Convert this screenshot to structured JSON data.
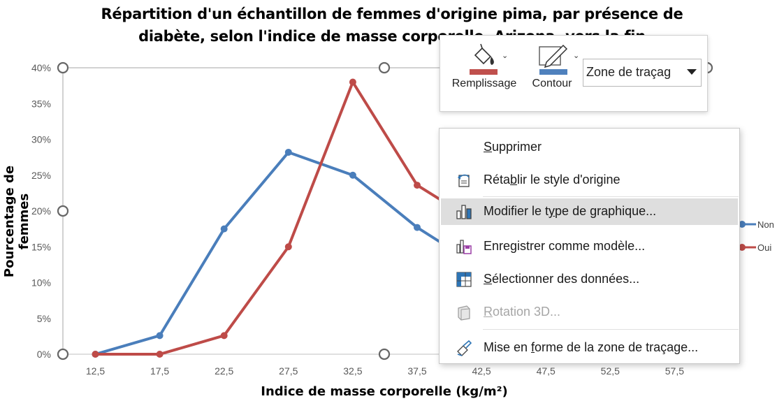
{
  "chart_data": {
    "type": "line",
    "title_line1": "Répartition d'un échantillon de femmes d'origine pima, par présence de",
    "title_line2": "diabète, selon l'indice de masse corporelle. Arizona, vers la fin",
    "xlabel": "Indice de masse corporelle (kg/m²)",
    "ylabel": "Pourcentage de femmes",
    "categories": [
      "12,5",
      "17,5",
      "22,5",
      "27,5",
      "32,5",
      "37,5",
      "42,5",
      "47,5",
      "52,5",
      "57,5"
    ],
    "y_ticks": [
      "0%",
      "5%",
      "10%",
      "15%",
      "20%",
      "25%",
      "30%",
      "35%",
      "40%"
    ],
    "ylim": [
      0,
      40
    ],
    "series": [
      {
        "name": "Non",
        "color": "#4a7ebb",
        "values": [
          0,
          2.6,
          17.5,
          28.2,
          25.0,
          17.7,
          12.0,
          null,
          null,
          null
        ]
      },
      {
        "name": "Oui",
        "color": "#be4b48",
        "values": [
          0,
          0,
          2.6,
          15.0,
          38.0,
          23.6,
          18.0,
          null,
          null,
          null
        ]
      }
    ],
    "legend_position": "right",
    "grid": false
  },
  "mini_toolbar": {
    "fill_label": "Remplissage",
    "fill_color": "#c0504d",
    "outline_label": "Contour",
    "outline_color": "#4f81bd",
    "element_selector_value": "Zone de traçag"
  },
  "context_menu": {
    "items": [
      {
        "pre": "",
        "u": "S",
        "post": "upprimer",
        "icon": "none",
        "disabled": false
      },
      {
        "pre": "Réta",
        "u": "b",
        "post": "lir le style d'origine",
        "icon": "reset-style-icon",
        "disabled": false
      },
      {
        "pre": "Modifier le t",
        "u": "y",
        "post": "pe de graphique...",
        "icon": "change-chart-type-icon",
        "disabled": false
      },
      {
        "pre": "Enre",
        "u": "g",
        "post": "istrer comme modèle...",
        "icon": "save-template-icon",
        "disabled": false
      },
      {
        "pre": "",
        "u": "S",
        "post": "électionner des données...",
        "icon": "select-data-icon",
        "disabled": false
      },
      {
        "pre": "",
        "u": "R",
        "post": "otation 3D...",
        "icon": "rotation-3d-icon",
        "disabled": true
      },
      {
        "pre": "Mise en ",
        "u": "f",
        "post": "orme de la zone de traçage...",
        "icon": "format-plot-area-icon",
        "disabled": false
      }
    ]
  }
}
